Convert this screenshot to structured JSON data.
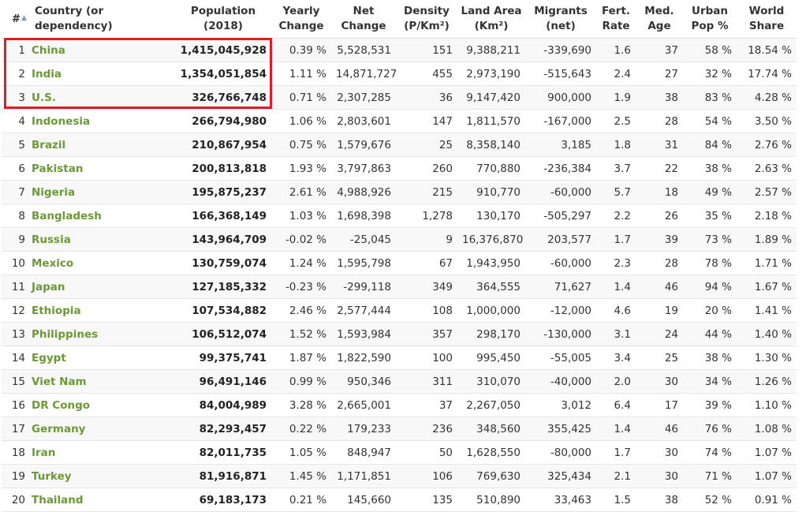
{
  "table": {
    "headers": {
      "rank": "#",
      "country": "Country (or dependency)",
      "population": [
        "Population",
        "(2018)"
      ],
      "yearly_change": [
        "Yearly",
        "Change"
      ],
      "net_change": [
        "Net",
        "Change"
      ],
      "density": [
        "Density",
        "(P/Km²)"
      ],
      "land_area": [
        "Land Area",
        "(Km²)"
      ],
      "migrants": [
        "Migrants",
        "(net)"
      ],
      "fert_rate": [
        "Fert.",
        "Rate"
      ],
      "med_age": [
        "Med.",
        "Age"
      ],
      "urban_pop": [
        "Urban",
        "Pop %"
      ],
      "world_share": [
        "World",
        "Share"
      ]
    },
    "sort_icon": "sort-up-icon",
    "highlight_color": "#e01b24",
    "country_link_color": "#6a9a35",
    "rows": [
      [
        "1",
        "China",
        "1,415,045,928",
        "0.39 %",
        "5,528,531",
        "151",
        "9,388,211",
        "-339,690",
        "1.6",
        "37",
        "58 %",
        "18.54 %"
      ],
      [
        "2",
        "India",
        "1,354,051,854",
        "1.11 %",
        "14,871,727",
        "455",
        "2,973,190",
        "-515,643",
        "2.4",
        "27",
        "32 %",
        "17.74 %"
      ],
      [
        "3",
        "U.S.",
        "326,766,748",
        "0.71 %",
        "2,307,285",
        "36",
        "9,147,420",
        "900,000",
        "1.9",
        "38",
        "83 %",
        "4.28 %"
      ],
      [
        "4",
        "Indonesia",
        "266,794,980",
        "1.06 %",
        "2,803,601",
        "147",
        "1,811,570",
        "-167,000",
        "2.5",
        "28",
        "54 %",
        "3.50 %"
      ],
      [
        "5",
        "Brazil",
        "210,867,954",
        "0.75 %",
        "1,579,676",
        "25",
        "8,358,140",
        "3,185",
        "1.8",
        "31",
        "84 %",
        "2.76 %"
      ],
      [
        "6",
        "Pakistan",
        "200,813,818",
        "1.93 %",
        "3,797,863",
        "260",
        "770,880",
        "-236,384",
        "3.7",
        "22",
        "38 %",
        "2.63 %"
      ],
      [
        "7",
        "Nigeria",
        "195,875,237",
        "2.61 %",
        "4,988,926",
        "215",
        "910,770",
        "-60,000",
        "5.7",
        "18",
        "49 %",
        "2.57 %"
      ],
      [
        "8",
        "Bangladesh",
        "166,368,149",
        "1.03 %",
        "1,698,398",
        "1,278",
        "130,170",
        "-505,297",
        "2.2",
        "26",
        "35 %",
        "2.18 %"
      ],
      [
        "9",
        "Russia",
        "143,964,709",
        "-0.02 %",
        "-25,045",
        "9",
        "16,376,870",
        "203,577",
        "1.7",
        "39",
        "73 %",
        "1.89 %"
      ],
      [
        "10",
        "Mexico",
        "130,759,074",
        "1.24 %",
        "1,595,798",
        "67",
        "1,943,950",
        "-60,000",
        "2.3",
        "28",
        "78 %",
        "1.71 %"
      ],
      [
        "11",
        "Japan",
        "127,185,332",
        "-0.23 %",
        "-299,118",
        "349",
        "364,555",
        "71,627",
        "1.4",
        "46",
        "94 %",
        "1.67 %"
      ],
      [
        "12",
        "Ethiopia",
        "107,534,882",
        "2.46 %",
        "2,577,444",
        "108",
        "1,000,000",
        "-12,000",
        "4.6",
        "19",
        "20 %",
        "1.41 %"
      ],
      [
        "13",
        "Philippines",
        "106,512,074",
        "1.52 %",
        "1,593,984",
        "357",
        "298,170",
        "-130,000",
        "3.1",
        "24",
        "44 %",
        "1.40 %"
      ],
      [
        "14",
        "Egypt",
        "99,375,741",
        "1.87 %",
        "1,822,590",
        "100",
        "995,450",
        "-55,005",
        "3.4",
        "25",
        "38 %",
        "1.30 %"
      ],
      [
        "15",
        "Viet Nam",
        "96,491,146",
        "0.99 %",
        "950,346",
        "311",
        "310,070",
        "-40,000",
        "2.0",
        "30",
        "34 %",
        "1.26 %"
      ],
      [
        "16",
        "DR Congo",
        "84,004,989",
        "3.28 %",
        "2,665,001",
        "37",
        "2,267,050",
        "3,012",
        "6.4",
        "17",
        "39 %",
        "1.10 %"
      ],
      [
        "17",
        "Germany",
        "82,293,457",
        "0.22 %",
        "179,233",
        "236",
        "348,560",
        "355,425",
        "1.4",
        "46",
        "76 %",
        "1.08 %"
      ],
      [
        "18",
        "Iran",
        "82,011,735",
        "1.05 %",
        "848,947",
        "50",
        "1,628,550",
        "-80,000",
        "1.7",
        "30",
        "74 %",
        "1.07 %"
      ],
      [
        "19",
        "Turkey",
        "81,916,871",
        "1.45 %",
        "1,171,851",
        "106",
        "769,630",
        "325,434",
        "2.1",
        "30",
        "71 %",
        "1.07 %"
      ],
      [
        "20",
        "Thailand",
        "69,183,173",
        "0.21 %",
        "145,660",
        "135",
        "510,890",
        "33,463",
        "1.5",
        "38",
        "52 %",
        "0.91 %"
      ]
    ]
  }
}
